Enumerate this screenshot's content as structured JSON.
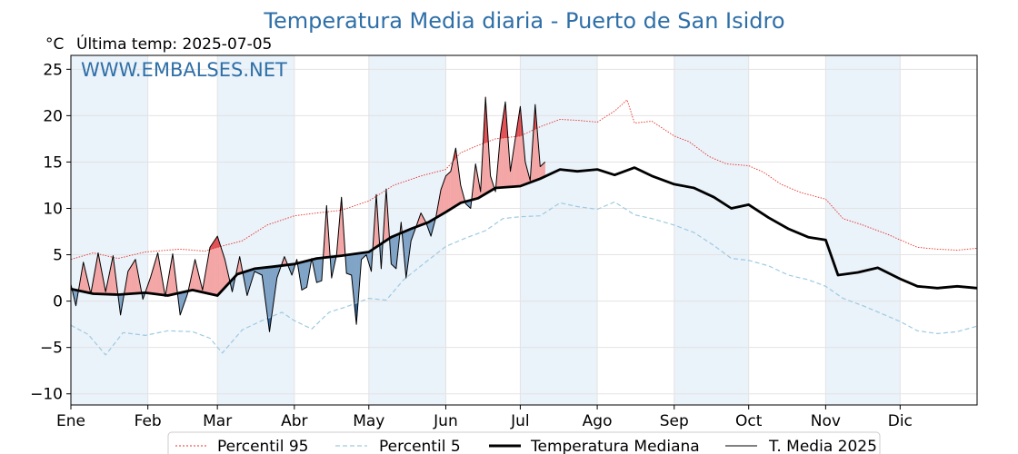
{
  "chart_data": {
    "type": "line",
    "title": "Temperatura Media diaria - Puerto de San Isidro",
    "unit_label": "°C",
    "last_temp_label": "Última temp: 2025-07-05",
    "watermark": "WWW.EMBALSES.NET",
    "ylim": [
      -11.2,
      26.5
    ],
    "yticks": [
      25,
      20,
      15,
      10,
      5,
      0,
      -5,
      -10
    ],
    "ytick_labels": [
      "25",
      "20",
      "15",
      "10",
      "5",
      "0",
      "−5",
      "−10"
    ],
    "months": [
      "Ene",
      "Feb",
      "Mar",
      "Abr",
      "May",
      "Jun",
      "Jul",
      "Ago",
      "Sep",
      "Oct",
      "Nov",
      "Dic"
    ],
    "month_start_days": [
      1,
      32,
      60,
      91,
      121,
      152,
      182,
      213,
      244,
      274,
      305,
      335
    ],
    "x_day_range": [
      1,
      366
    ],
    "grid": true,
    "legend_position": "bottom",
    "colors": {
      "p95": "#e8302a",
      "p5": "#9ecae1",
      "median": "#000000",
      "t2025": "#000000",
      "above": "#f4a6a6",
      "above_strong": "#e0454a",
      "below": "#7fa3c6",
      "below_strong": "#1f5a96",
      "band": "#eaf2fa"
    },
    "series": [
      {
        "name": "Percentil 95",
        "style": "dotted",
        "points": [
          [
            1,
            4.5
          ],
          [
            10,
            5.2
          ],
          [
            20,
            4.6
          ],
          [
            31,
            5.3
          ],
          [
            45,
            5.6
          ],
          [
            55,
            5.4
          ],
          [
            60,
            5.8
          ],
          [
            70,
            6.5
          ],
          [
            80,
            8.2
          ],
          [
            91,
            9.2
          ],
          [
            100,
            9.5
          ],
          [
            110,
            9.8
          ],
          [
            121,
            10.8
          ],
          [
            131,
            12.5
          ],
          [
            142,
            13.5
          ],
          [
            152,
            14.2
          ],
          [
            158,
            16.0
          ],
          [
            165,
            16.8
          ],
          [
            172,
            17.5
          ],
          [
            182,
            17.8
          ],
          [
            190,
            18.8
          ],
          [
            198,
            19.6
          ],
          [
            205,
            19.5
          ],
          [
            213,
            19.3
          ],
          [
            220,
            20.5
          ],
          [
            225,
            21.7
          ],
          [
            228,
            19.2
          ],
          [
            235,
            19.4
          ],
          [
            244,
            17.8
          ],
          [
            250,
            17.2
          ],
          [
            258,
            15.6
          ],
          [
            265,
            14.8
          ],
          [
            274,
            14.6
          ],
          [
            280,
            13.9
          ],
          [
            287,
            12.6
          ],
          [
            295,
            11.7
          ],
          [
            305,
            11.0
          ],
          [
            312,
            8.9
          ],
          [
            320,
            8.2
          ],
          [
            330,
            7.2
          ],
          [
            335,
            6.6
          ],
          [
            342,
            5.8
          ],
          [
            350,
            5.6
          ],
          [
            358,
            5.5
          ],
          [
            366,
            5.7
          ]
        ]
      },
      {
        "name": "Percentil 5",
        "style": "dashed",
        "points": [
          [
            1,
            -2.6
          ],
          [
            8,
            -3.6
          ],
          [
            15,
            -5.8
          ],
          [
            22,
            -3.4
          ],
          [
            31,
            -3.7
          ],
          [
            40,
            -3.2
          ],
          [
            50,
            -3.3
          ],
          [
            57,
            -4.0
          ],
          [
            62,
            -5.6
          ],
          [
            70,
            -3.1
          ],
          [
            78,
            -2.1
          ],
          [
            86,
            -1.2
          ],
          [
            91,
            -2.1
          ],
          [
            98,
            -3.0
          ],
          [
            105,
            -1.2
          ],
          [
            112,
            -0.6
          ],
          [
            121,
            0.3
          ],
          [
            128,
            0.1
          ],
          [
            135,
            2.3
          ],
          [
            142,
            3.8
          ],
          [
            152,
            5.9
          ],
          [
            160,
            6.8
          ],
          [
            168,
            7.6
          ],
          [
            175,
            8.9
          ],
          [
            182,
            9.1
          ],
          [
            190,
            9.2
          ],
          [
            198,
            10.6
          ],
          [
            205,
            10.2
          ],
          [
            213,
            9.9
          ],
          [
            220,
            10.7
          ],
          [
            228,
            9.3
          ],
          [
            235,
            8.9
          ],
          [
            244,
            8.2
          ],
          [
            252,
            7.4
          ],
          [
            260,
            6.0
          ],
          [
            267,
            4.6
          ],
          [
            274,
            4.4
          ],
          [
            282,
            3.8
          ],
          [
            290,
            2.8
          ],
          [
            298,
            2.3
          ],
          [
            305,
            1.6
          ],
          [
            312,
            0.3
          ],
          [
            320,
            -0.5
          ],
          [
            328,
            -1.4
          ],
          [
            335,
            -2.2
          ],
          [
            342,
            -3.2
          ],
          [
            350,
            -3.5
          ],
          [
            358,
            -3.3
          ],
          [
            366,
            -2.7
          ]
        ]
      },
      {
        "name": "Temperatura Mediana",
        "style": "solid-thick",
        "points": [
          [
            1,
            1.3
          ],
          [
            10,
            0.8
          ],
          [
            20,
            0.7
          ],
          [
            31,
            0.9
          ],
          [
            40,
            0.6
          ],
          [
            50,
            1.2
          ],
          [
            60,
            0.6
          ],
          [
            68,
            2.9
          ],
          [
            75,
            3.5
          ],
          [
            82,
            3.7
          ],
          [
            91,
            4.0
          ],
          [
            100,
            4.6
          ],
          [
            110,
            4.9
          ],
          [
            121,
            5.3
          ],
          [
            130,
            6.9
          ],
          [
            138,
            7.8
          ],
          [
            145,
            8.5
          ],
          [
            152,
            9.6
          ],
          [
            158,
            10.6
          ],
          [
            165,
            11.1
          ],
          [
            172,
            12.2
          ],
          [
            182,
            12.4
          ],
          [
            190,
            13.2
          ],
          [
            198,
            14.2
          ],
          [
            205,
            14.0
          ],
          [
            213,
            14.2
          ],
          [
            220,
            13.6
          ],
          [
            228,
            14.4
          ],
          [
            235,
            13.5
          ],
          [
            244,
            12.6
          ],
          [
            252,
            12.2
          ],
          [
            260,
            11.2
          ],
          [
            267,
            10.0
          ],
          [
            274,
            10.4
          ],
          [
            282,
            9.0
          ],
          [
            290,
            7.8
          ],
          [
            298,
            6.9
          ],
          [
            305,
            6.6
          ],
          [
            310,
            2.8
          ],
          [
            318,
            3.1
          ],
          [
            326,
            3.6
          ],
          [
            335,
            2.4
          ],
          [
            342,
            1.6
          ],
          [
            350,
            1.4
          ],
          [
            358,
            1.6
          ],
          [
            366,
            1.4
          ]
        ]
      },
      {
        "name": "T. Media 2025",
        "style": "solid-thin",
        "points": [
          [
            1,
            1.8
          ],
          [
            3,
            -0.5
          ],
          [
            6,
            4.2
          ],
          [
            9,
            0.8
          ],
          [
            12,
            5.2
          ],
          [
            15,
            1.0
          ],
          [
            18,
            4.9
          ],
          [
            21,
            -1.5
          ],
          [
            24,
            3.2
          ],
          [
            27,
            4.5
          ],
          [
            30,
            0.2
          ],
          [
            33,
            2.5
          ],
          [
            36,
            5.2
          ],
          [
            39,
            0.5
          ],
          [
            42,
            5.1
          ],
          [
            45,
            -1.5
          ],
          [
            48,
            0.8
          ],
          [
            51,
            4.5
          ],
          [
            54,
            1.2
          ],
          [
            57,
            5.8
          ],
          [
            60,
            7.0
          ],
          [
            63,
            4.5
          ],
          [
            66,
            1.0
          ],
          [
            69,
            4.8
          ],
          [
            72,
            0.6
          ],
          [
            75,
            3.2
          ],
          [
            78,
            2.8
          ],
          [
            81,
            -3.3
          ],
          [
            84,
            2.5
          ],
          [
            87,
            4.8
          ],
          [
            90,
            2.8
          ],
          [
            92,
            4.5
          ],
          [
            94,
            1.2
          ],
          [
            96,
            1.5
          ],
          [
            98,
            4.6
          ],
          [
            100,
            2.0
          ],
          [
            102,
            2.2
          ],
          [
            104,
            10.3
          ],
          [
            106,
            2.5
          ],
          [
            108,
            5.0
          ],
          [
            110,
            11.2
          ],
          [
            112,
            3.0
          ],
          [
            114,
            2.8
          ],
          [
            116,
            -2.5
          ],
          [
            118,
            4.5
          ],
          [
            120,
            5.0
          ],
          [
            122,
            3.2
          ],
          [
            124,
            11.5
          ],
          [
            126,
            3.5
          ],
          [
            128,
            12.1
          ],
          [
            130,
            4.0
          ],
          [
            132,
            3.5
          ],
          [
            134,
            8.5
          ],
          [
            136,
            2.5
          ],
          [
            138,
            6.5
          ],
          [
            140,
            8.0
          ],
          [
            142,
            9.5
          ],
          [
            144,
            8.5
          ],
          [
            146,
            7.0
          ],
          [
            148,
            9.0
          ],
          [
            150,
            12.0
          ],
          [
            152,
            13.5
          ],
          [
            154,
            14.0
          ],
          [
            156,
            16.5
          ],
          [
            158,
            12.5
          ],
          [
            160,
            10.5
          ],
          [
            162,
            10.0
          ],
          [
            164,
            14.8
          ],
          [
            166,
            11.8
          ],
          [
            168,
            22.0
          ],
          [
            170,
            13.5
          ],
          [
            172,
            11.8
          ],
          [
            174,
            18.0
          ],
          [
            176,
            21.5
          ],
          [
            178,
            14.0
          ],
          [
            180,
            17.5
          ],
          [
            182,
            21.0
          ],
          [
            184,
            15.0
          ],
          [
            186,
            13.0
          ],
          [
            188,
            21.2
          ],
          [
            190,
            14.5
          ],
          [
            192,
            15.0
          ]
        ]
      }
    ]
  },
  "legend": {
    "items": [
      {
        "label": "Percentil 95"
      },
      {
        "label": "Percentil 5"
      },
      {
        "label": "Temperatura Mediana"
      },
      {
        "label": "T. Media 2025"
      }
    ]
  }
}
